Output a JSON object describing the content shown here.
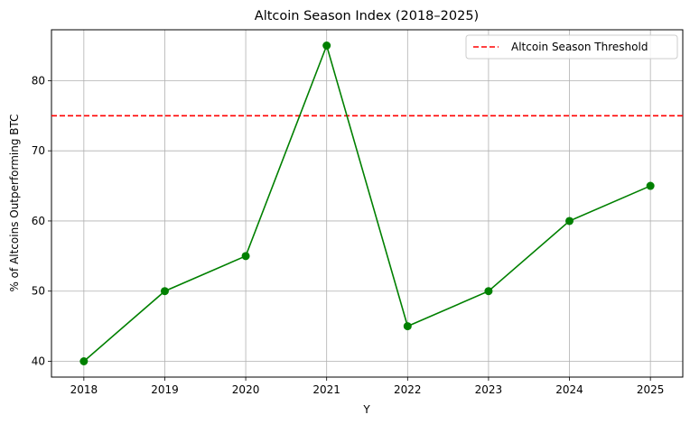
{
  "chart_data": {
    "type": "line",
    "title": "Altcoin Season Index (2018–2025)",
    "xlabel": "Y",
    "ylabel": "% of Altcoins Outperforming BTC",
    "categories": [
      "2018",
      "2019",
      "2020",
      "2021",
      "2022",
      "2023",
      "2024",
      "2025"
    ],
    "series": [
      {
        "values": [
          40,
          50,
          55,
          85,
          45,
          50,
          60,
          65
        ],
        "color": "#008000",
        "marker": "circle"
      }
    ],
    "threshold": {
      "name": "Altcoin Season Threshold",
      "value": 75,
      "color": "#ff0000",
      "style": "dashed"
    },
    "y_ticks": [
      40,
      50,
      60,
      70,
      80
    ],
    "ylim": [
      37.75,
      87.25
    ],
    "grid": true,
    "legend_position": "top-right"
  }
}
